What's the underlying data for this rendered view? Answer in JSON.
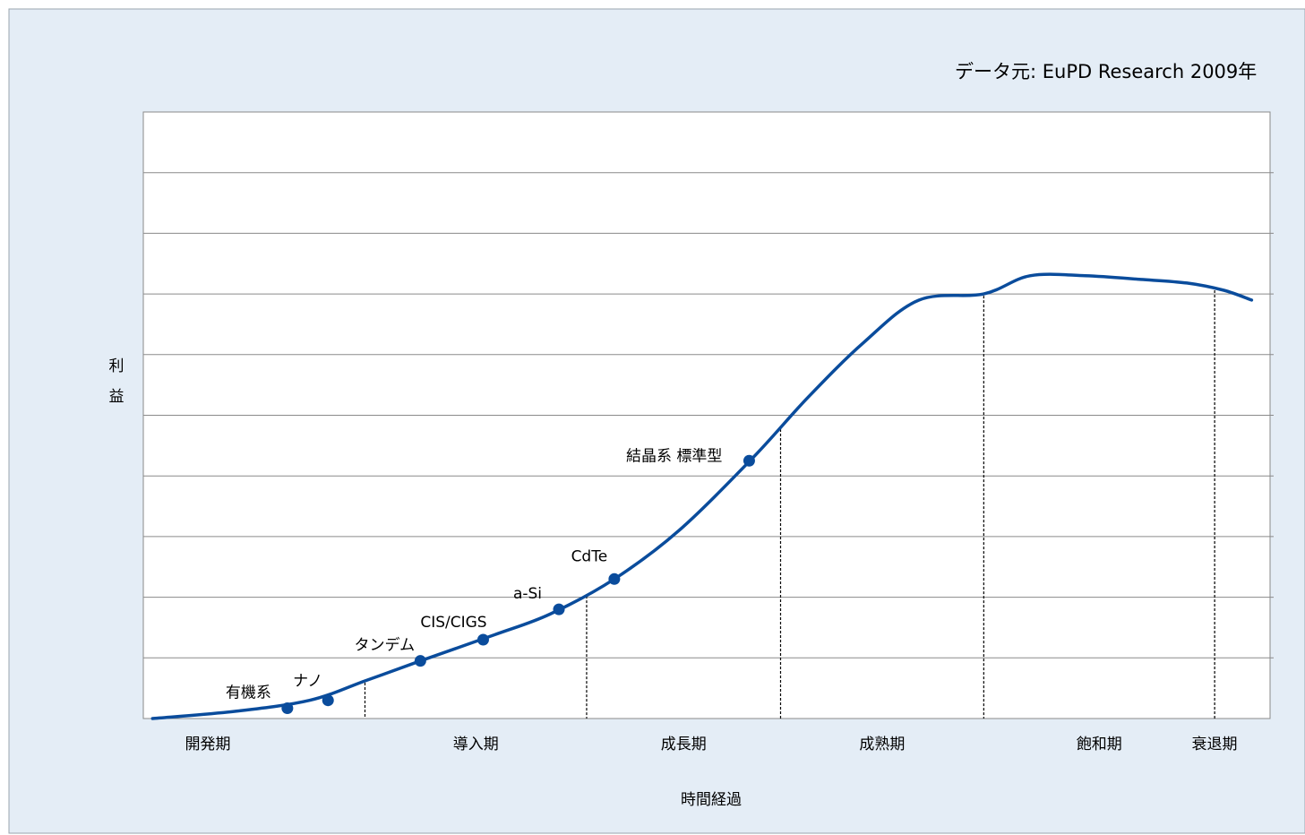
{
  "source_note": "データ元: EuPD Research 2009年",
  "colors": {
    "background": "#e4edf6",
    "plot_area": "#ffffff",
    "gridline": "#8a8a8a",
    "curve": "#0a4c9c",
    "marker": "#0a4c9c",
    "text": "#000000"
  },
  "chart_data": {
    "type": "line",
    "title": "",
    "xlabel": "時間経過",
    "ylabel": "利益",
    "ylabel_chars": [
      "利",
      "益"
    ],
    "xlim": [
      0,
      6.1
    ],
    "ylim": [
      0,
      10
    ],
    "grid": true,
    "y_gridlines": [
      1,
      2,
      3,
      4,
      5,
      6,
      7,
      8,
      9
    ],
    "stages": [
      "開発期",
      "導入期",
      "成長期",
      "成熟期",
      "飽和期",
      "衰退期"
    ],
    "stage_boundaries": [
      1.2,
      2.4,
      3.45,
      4.55,
      5.8
    ],
    "curve": {
      "x": [
        0.05,
        0.5,
        0.9,
        1.2,
        1.5,
        1.9,
        2.2,
        2.55,
        2.9,
        3.3,
        3.6,
        3.9,
        4.2,
        4.55,
        4.8,
        5.1,
        5.4,
        5.65,
        5.85,
        6.0
      ],
      "y": [
        0.0,
        0.12,
        0.3,
        0.62,
        0.95,
        1.38,
        1.72,
        2.3,
        3.1,
        4.3,
        5.3,
        6.2,
        6.9,
        7.0,
        7.3,
        7.3,
        7.24,
        7.18,
        7.06,
        6.9
      ]
    },
    "points": [
      {
        "label": "有機系",
        "x": 0.78,
        "y": 0.17
      },
      {
        "label": "ナノ",
        "x": 1.0,
        "y": 0.3
      },
      {
        "label": "タンデム",
        "x": 1.5,
        "y": 0.95
      },
      {
        "label": "CIS/CIGS",
        "x": 1.84,
        "y": 1.3
      },
      {
        "label": "a-Si",
        "x": 2.25,
        "y": 1.8
      },
      {
        "label": "CdTe",
        "x": 2.55,
        "y": 2.3
      },
      {
        "label": "結晶系 標準型",
        "x": 3.28,
        "y": 4.25
      }
    ]
  }
}
